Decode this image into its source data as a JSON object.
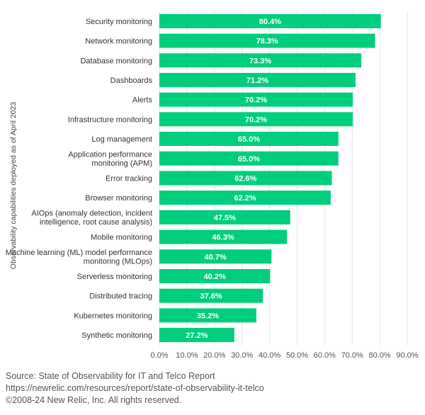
{
  "chart_data": {
    "type": "bar",
    "orientation": "horizontal",
    "ylabel": "Observability capabilities deployed as of April 2023",
    "xlabel": "",
    "xlim": [
      0,
      90
    ],
    "xticks": [
      0,
      10,
      20,
      30,
      40,
      50,
      60,
      70,
      80,
      90
    ],
    "tick_suffix": "%",
    "grid": true,
    "bar_color": "#00ce7c",
    "data_label_color": "#ffffff",
    "categories": [
      [
        "Security monitoring"
      ],
      [
        "Network monitoring"
      ],
      [
        "Database monitoring"
      ],
      [
        "Dashboards"
      ],
      [
        "Alerts"
      ],
      [
        "Infrastructure monitoring"
      ],
      [
        "Log management"
      ],
      [
        "Application performance",
        "monitoring (APM)"
      ],
      [
        "Error tracking"
      ],
      [
        "Browser monitoring"
      ],
      [
        "AIOps (anomaly detection, incident",
        "intelligence, root cause analysis)"
      ],
      [
        "Mobile monitoring"
      ],
      [
        "Machine learning (ML) model performance",
        "monitoring (MLOps)"
      ],
      [
        "Serverless monitoring"
      ],
      [
        "Distributed tracing"
      ],
      [
        "Kubernetes monitoring"
      ],
      [
        "Synthetic monitoring"
      ]
    ],
    "values": [
      80.4,
      78.3,
      73.3,
      71.2,
      70.2,
      70.2,
      65.0,
      65.0,
      62.6,
      62.2,
      47.5,
      46.3,
      40.7,
      40.2,
      37.6,
      35.2,
      27.2
    ]
  },
  "source": {
    "line1": "Source: State of Observability for IT and Telco Report",
    "line2": "https://newrelic.com/resources/report/state-of-observability-it-telco",
    "line3": "©2008-24 New Relic, Inc. All rights reserved."
  }
}
